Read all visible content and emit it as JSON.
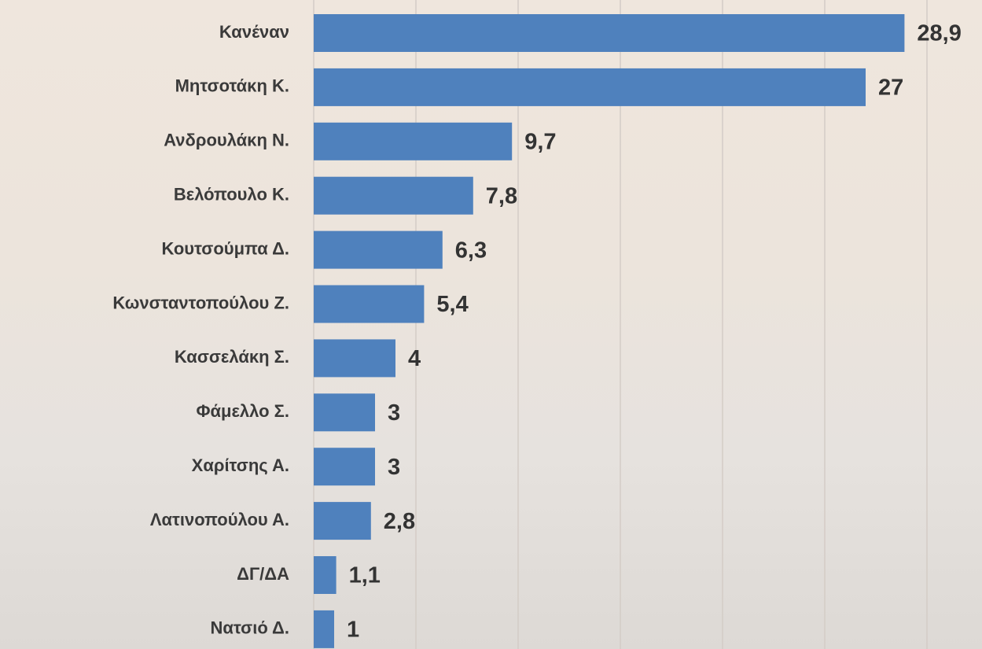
{
  "chart_data": {
    "type": "bar",
    "orientation": "horizontal",
    "categories": [
      "Κανέναν",
      "Μητσοτάκη Κ.",
      "Ανδρουλάκη Ν.",
      "Βελόπουλο Κ.",
      "Κουτσούμπα Δ.",
      "Κωνσταντοπούλου Ζ.",
      "Κασσελάκη Σ.",
      "Φάμελλο Σ.",
      "Χαρίτσης Α.",
      "Λατινοπούλου Α.",
      "ΔΓ/ΔΑ",
      "Νατσιό Δ."
    ],
    "values": [
      28.9,
      27,
      9.7,
      7.8,
      6.3,
      5.4,
      4,
      3,
      3,
      2.8,
      1.1,
      1
    ],
    "value_labels": [
      "28,9",
      "27",
      "9,7",
      "7,8",
      "6,3",
      "5,4",
      "4",
      "3",
      "3",
      "2,8",
      "1,1",
      "1"
    ],
    "color": "#4f81bd",
    "xlim": [
      0,
      30
    ],
    "xticks": [
      0,
      5,
      10,
      15,
      20,
      25,
      30
    ],
    "grid": true
  }
}
